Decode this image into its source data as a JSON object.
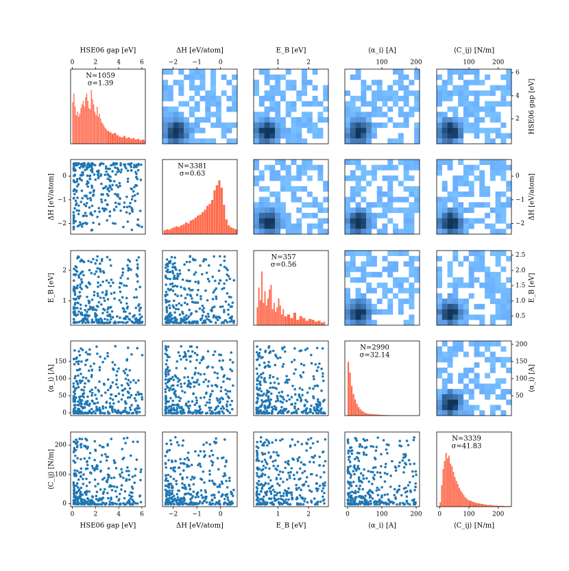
{
  "chart_data": {
    "type": "pairplot",
    "variables": [
      {
        "key": "gap",
        "label": "HSE06 gap [eV]",
        "range": [
          -0.15,
          6.3
        ],
        "ticks": [
          0,
          2,
          4,
          6
        ],
        "tick_labels": [
          "0",
          "2",
          "4",
          "6"
        ],
        "right_ticks": [
          2,
          4,
          6
        ],
        "right_tick_labels": [
          "2",
          "4",
          "6"
        ],
        "top_ticks": [
          0,
          2,
          4,
          6
        ],
        "top_tick_labels": [
          "0",
          "2",
          "4",
          "6"
        ]
      },
      {
        "key": "dH",
        "label": "ΔH [eV/atom]",
        "range": [
          -2.45,
          0.7
        ],
        "ticks": [
          -2,
          -1,
          0
        ],
        "tick_labels": [
          "−2",
          "−1",
          "0"
        ],
        "right_ticks": [
          -2,
          -1,
          0
        ],
        "right_tick_labels": [
          "−2",
          "−1",
          "0"
        ],
        "top_ticks": [
          -2,
          -1,
          0
        ],
        "top_tick_labels": [
          "−2",
          "−1",
          "0"
        ]
      },
      {
        "key": "EB",
        "label": "E_B [eV]",
        "range": [
          0.2,
          2.65
        ],
        "ticks": [
          1,
          2
        ],
        "tick_labels": [
          "1",
          "2"
        ],
        "right_ticks": [
          0.5,
          1.0,
          1.5,
          2.0,
          2.5
        ],
        "right_tick_labels": [
          "0.5",
          "1.0",
          "1.5",
          "2.0",
          "2.5"
        ],
        "top_ticks": [
          1,
          2
        ],
        "top_tick_labels": [
          "1",
          "2"
        ]
      },
      {
        "key": "alpha",
        "label": "⟨α_i⟩ [A]",
        "range": [
          -8,
          210
        ],
        "ticks": [
          0,
          50,
          100,
          150
        ],
        "tick_labels": [
          "0",
          "50",
          "100",
          "150"
        ],
        "right_ticks": [
          50,
          100,
          150,
          200
        ],
        "right_tick_labels": [
          "50",
          "100",
          "150",
          "200"
        ],
        "top_ticks": [
          100,
          200
        ],
        "top_tick_labels": [
          "100",
          "200"
        ],
        "bottom_ticks": [
          0,
          100,
          200
        ],
        "bottom_tick_labels": [
          "0",
          "100",
          "200"
        ]
      },
      {
        "key": "C",
        "label": "⟨C_ij⟩ [N/m]",
        "range": [
          -10,
          245
        ],
        "ticks": [
          0,
          100,
          200
        ],
        "tick_labels": [
          "0",
          "100",
          "200"
        ],
        "right_ticks": [],
        "right_tick_labels": [],
        "top_ticks": [
          100,
          200
        ],
        "top_tick_labels": [
          "100",
          "200"
        ]
      }
    ],
    "diagonal_stats": [
      {
        "n": "N=1059",
        "sigma": "σ=1.39"
      },
      {
        "n": "N=3381",
        "sigma": "σ=0.63"
      },
      {
        "n": "N=357",
        "sigma": "σ=0.56"
      },
      {
        "n": "N=2990",
        "sigma": "σ=32.14"
      },
      {
        "n": "N=3339",
        "sigma": "σ=41.83"
      }
    ],
    "histograms": [
      {
        "bins": [
          0.0,
          0.1,
          0.2,
          0.3,
          0.4,
          0.5,
          0.6,
          0.7,
          0.8,
          0.9,
          1.0,
          1.1,
          1.2,
          1.3,
          1.4,
          1.5,
          1.6,
          1.7,
          1.8,
          1.9,
          2.0,
          2.1,
          2.2,
          2.3,
          2.4,
          2.5,
          2.6,
          2.7,
          2.8,
          2.9,
          3.0,
          3.2,
          3.4,
          3.6,
          3.8,
          4.0,
          4.2,
          4.4,
          4.6,
          4.8,
          5.0,
          5.2,
          5.4,
          5.6,
          5.8,
          6.0,
          6.2
        ],
        "counts": [
          58,
          70,
          52,
          40,
          45,
          38,
          42,
          50,
          55,
          60,
          52,
          65,
          70,
          60,
          50,
          48,
          75,
          62,
          55,
          45,
          40,
          52,
          38,
          42,
          35,
          30,
          28,
          25,
          22,
          20,
          18,
          16,
          14,
          15,
          12,
          10,
          9,
          11,
          8,
          9,
          7,
          8,
          6,
          7,
          5,
          6,
          5
        ]
      },
      {
        "bins": [
          -2.4,
          -2.3,
          -2.2,
          -2.1,
          -2.0,
          -1.9,
          -1.8,
          -1.7,
          -1.6,
          -1.5,
          -1.4,
          -1.3,
          -1.2,
          -1.1,
          -1.0,
          -0.9,
          -0.8,
          -0.7,
          -0.6,
          -0.5,
          -0.4,
          -0.3,
          -0.2,
          -0.1,
          0.0,
          0.1,
          0.2,
          0.3,
          0.4,
          0.5,
          0.6
        ],
        "counts": [
          8,
          10,
          9,
          12,
          14,
          16,
          15,
          18,
          20,
          24,
          22,
          28,
          30,
          34,
          38,
          40,
          45,
          50,
          58,
          62,
          70,
          90,
          100,
          110,
          95,
          60,
          30,
          18,
          14,
          12,
          10
        ]
      },
      {
        "bins": [
          0.3,
          0.35,
          0.4,
          0.45,
          0.5,
          0.55,
          0.6,
          0.65,
          0.7,
          0.75,
          0.8,
          0.85,
          0.9,
          0.95,
          1.0,
          1.05,
          1.1,
          1.15,
          1.2,
          1.3,
          1.4,
          1.5,
          1.6,
          1.7,
          1.8,
          1.9,
          2.0,
          2.1,
          2.2,
          2.3,
          2.4,
          2.5
        ],
        "counts": [
          20,
          42,
          28,
          60,
          25,
          38,
          22,
          30,
          40,
          45,
          18,
          25,
          15,
          20,
          30,
          22,
          12,
          18,
          10,
          12,
          8,
          14,
          6,
          10,
          8,
          5,
          7,
          6,
          4,
          5,
          3,
          4
        ]
      },
      {
        "bins": [
          0,
          5,
          10,
          15,
          20,
          25,
          30,
          35,
          40,
          45,
          50,
          55,
          60,
          70,
          80,
          90,
          100,
          110,
          120,
          130,
          140,
          150
        ],
        "counts": [
          100,
          80,
          55,
          40,
          30,
          22,
          16,
          12,
          9,
          7,
          5,
          4,
          3,
          2.5,
          2,
          1.5,
          1,
          1,
          0.5,
          0.5,
          0.3,
          0.2
        ]
      },
      {
        "bins": [
          0,
          5,
          10,
          15,
          20,
          25,
          30,
          35,
          40,
          45,
          50,
          55,
          60,
          65,
          70,
          75,
          80,
          85,
          90,
          95,
          100,
          110,
          120,
          130,
          140,
          150,
          160,
          170,
          180,
          190,
          200,
          210,
          220,
          230,
          240
        ],
        "counts": [
          8,
          40,
          70,
          85,
          100,
          90,
          95,
          80,
          75,
          65,
          55,
          48,
          42,
          35,
          30,
          26,
          22,
          18,
          15,
          13,
          11,
          9,
          7,
          6,
          5,
          4,
          3,
          3,
          2,
          2,
          1.5,
          1.5,
          1,
          1,
          0.5
        ]
      }
    ],
    "scatter": {
      "gap_dH": {
        "x": [
          0.2,
          0.3,
          0.4,
          0.5,
          0.6,
          0.7,
          0.8,
          0.9,
          1.0,
          1.1,
          1.2,
          1.4,
          1.5,
          1.7,
          1.8,
          2.0,
          2.2,
          2.3,
          2.5,
          2.7,
          2.9,
          3.0,
          3.2,
          3.5,
          3.7,
          4.0,
          4.2,
          4.5,
          4.8,
          5.0,
          5.3,
          5.5,
          5.8,
          6.0,
          6.1,
          0.5,
          1.0,
          1.5,
          2.0,
          2.5,
          3.0,
          3.5,
          4.0,
          4.5,
          5.0,
          5.5,
          6.0,
          0.8,
          1.3,
          1.9,
          2.6,
          3.3,
          4.1,
          4.9,
          5.6
        ],
        "y": [
          0.2,
          -0.1,
          -0.5,
          0.4,
          -0.8,
          0.1,
          -1.2,
          -0.3,
          0.0,
          -0.6,
          -1.5,
          -0.2,
          -0.9,
          -0.4,
          -1.8,
          -0.7,
          -0.1,
          -1.3,
          -0.5,
          -2.0,
          -0.8,
          -1.0,
          -0.3,
          -1.4,
          -1.7,
          -0.6,
          -1.2,
          -2.1,
          -1.5,
          -0.9,
          -1.9,
          -1.1,
          -2.2,
          -1.6,
          -2.0,
          -1.1,
          -1.9,
          -0.7,
          -1.6,
          -1.9,
          -1.6,
          -1.0,
          -1.8,
          -1.3,
          -2.2,
          -1.5,
          -1.2,
          0.5,
          0.3,
          0.1,
          -0.2,
          -0.4,
          -0.9,
          -1.3,
          -1.5
        ]
      },
      "gap_EB": {
        "x": [
          0.2,
          0.4,
          0.5,
          0.6,
          0.8,
          1.0,
          1.2,
          1.4,
          1.6,
          1.8,
          2.0,
          2.2,
          2.5,
          2.8,
          3.0,
          3.3,
          3.6,
          4.0,
          4.3,
          4.6,
          5.0,
          5.3,
          5.6,
          6.0,
          6.1,
          0.3,
          0.7,
          1.1,
          1.5,
          2.1,
          2.6,
          3.1,
          3.8,
          4.4,
          5.2,
          5.8
        ],
        "y": [
          0.3,
          0.4,
          0.5,
          0.35,
          0.6,
          0.7,
          0.8,
          0.9,
          1.0,
          1.1,
          1.2,
          1.0,
          1.3,
          1.4,
          1.5,
          1.6,
          1.7,
          1.5,
          1.8,
          1.9,
          2.0,
          1.7,
          2.2,
          2.4,
          2.6,
          0.4,
          0.5,
          0.6,
          0.8,
          0.9,
          1.2,
          1.3,
          2.0,
          2.3,
          1.6,
          2.1
        ]
      },
      "gap_alpha": {
        "x": [
          0.0,
          0.1,
          0.2,
          0.3,
          0.4,
          0.5,
          0.6,
          0.8,
          1.0,
          1.2,
          1.5,
          1.8,
          2.0,
          2.5,
          3.0,
          3.5,
          4.0,
          4.5,
          5.0,
          5.5,
          6.0,
          0.1,
          0.2,
          0.3
        ],
        "y": [
          185,
          160,
          120,
          80,
          60,
          40,
          30,
          25,
          20,
          15,
          12,
          10,
          8,
          6,
          5,
          4,
          3,
          3,
          2,
          2,
          1,
          95,
          70,
          50
        ]
      },
      "gap_C": {
        "x": [
          0.3,
          0.5,
          0.7,
          1.0,
          1.3,
          1.6,
          2.0,
          2.4,
          2.8,
          3.2,
          3.6,
          4.0,
          4.4,
          4.8,
          5.2,
          5.6,
          6.0,
          0.6,
          0.9,
          1.5,
          2.2,
          3.0,
          3.8,
          4.6,
          5.4,
          6.1,
          0.4,
          1.2,
          2.5,
          3.4
        ],
        "y": [
          240,
          160,
          120,
          90,
          70,
          50,
          40,
          35,
          30,
          25,
          22,
          20,
          18,
          15,
          12,
          10,
          8,
          100,
          140,
          110,
          80,
          60,
          45,
          30,
          25,
          20,
          30,
          50,
          20,
          15
        ]
      },
      "dH_EB": {
        "x": [
          -2.3,
          -2.1,
          -1.9,
          -1.7,
          -1.5,
          -1.3,
          -1.1,
          -0.9,
          -0.7,
          -0.5,
          -0.3,
          -0.1,
          0.1,
          0.3,
          0.5,
          0.6,
          -2.0,
          -1.4,
          -0.8,
          -0.2,
          0.2
        ],
        "y": [
          2.5,
          2.0,
          1.2,
          2.3,
          1.6,
          2.1,
          1.0,
          2.2,
          1.5,
          0.8,
          1.3,
          0.6,
          0.9,
          0.5,
          0.7,
          0.4,
          0.6,
          0.8,
          2.4,
          1.8,
          1.1
        ]
      },
      "dH_alpha": {
        "x": [
          -2.2,
          -1.9,
          -1.6,
          -1.3,
          -1.0,
          -0.7,
          -0.4,
          -0.1,
          0.2,
          0.5,
          -0.8,
          -0.5,
          -0.2,
          0.1,
          -1.2,
          -0.3
        ],
        "y": [
          20,
          40,
          60,
          90,
          120,
          150,
          180,
          170,
          140,
          100,
          70,
          50,
          30,
          15,
          10,
          5
        ]
      },
      "dH_C": {
        "x": [
          -2.3,
          -2.0,
          -1.7,
          -1.4,
          -1.1,
          -0.8,
          -0.5,
          -0.2,
          0.1,
          0.4,
          0.6,
          -1.0,
          -0.6,
          -0.3,
          0.0
        ],
        "y": [
          230,
          200,
          180,
          160,
          240,
          220,
          210,
          190,
          170,
          150,
          130,
          100,
          80,
          60,
          40
        ]
      },
      "EB_alpha": {
        "x": [
          0.3,
          0.4,
          0.5,
          0.6,
          0.8,
          1.0,
          1.2,
          1.5,
          1.8,
          2.0,
          2.3,
          2.5
        ],
        "y": [
          185,
          120,
          60,
          30,
          20,
          12,
          8,
          5,
          4,
          3,
          2,
          1
        ]
      },
      "EB_C": {
        "x": [
          0.4,
          0.6,
          0.8,
          1.0,
          1.3,
          1.6,
          1.9,
          2.2,
          2.5,
          0.5,
          1.1,
          1.7,
          2.1
        ],
        "y": [
          30,
          50,
          40,
          70,
          60,
          90,
          120,
          140,
          160,
          110,
          100,
          150,
          40
        ]
      },
      "alpha_C": {
        "x": [
          0,
          5,
          10,
          20,
          30,
          50,
          70,
          90,
          120,
          150,
          180,
          200,
          40,
          60,
          100
        ],
        "y": [
          240,
          200,
          180,
          150,
          120,
          100,
          80,
          60,
          50,
          40,
          30,
          20,
          90,
          70,
          55
        ]
      }
    }
  }
}
